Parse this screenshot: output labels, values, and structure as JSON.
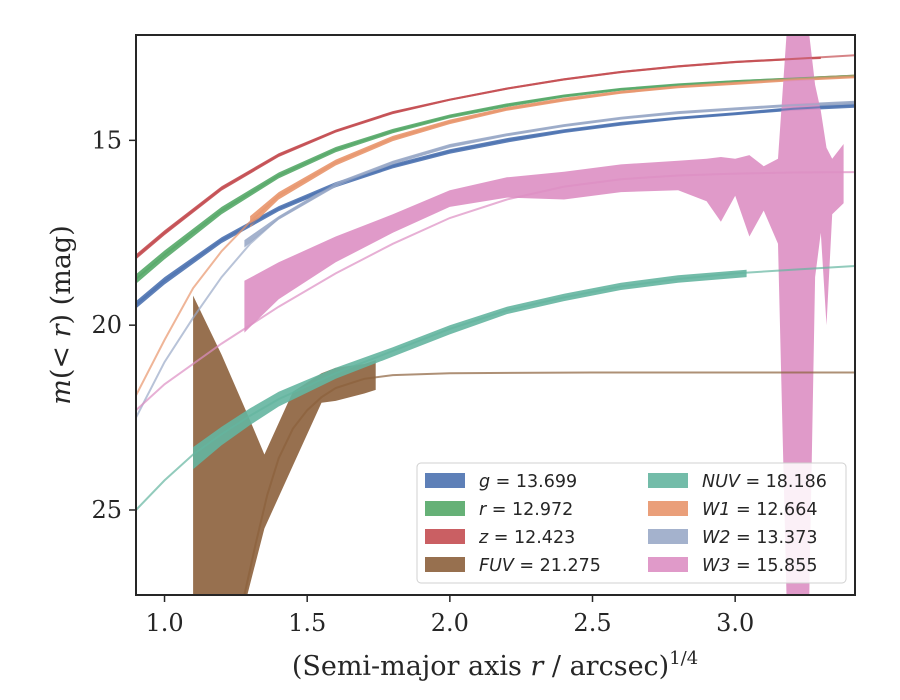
{
  "chart_data": {
    "type": "line",
    "xlabel": "(Semi-major axis r / arcsec)^{1/4}",
    "xlabel_parts": [
      "(Semi-major axis ",
      "r",
      " / arcsec)",
      "1/4"
    ],
    "ylabel": "m(< r) (mag)",
    "ylabel_parts": [
      "m",
      "(< ",
      "r",
      ") (mag)"
    ],
    "xlim": [
      0.9,
      3.42
    ],
    "ylim": [
      27.3,
      12.15
    ],
    "y_inverted": true,
    "xticks": [
      "1.0",
      "1.5",
      "2.0",
      "2.5",
      "3.0"
    ],
    "xtick_values": [
      1.0,
      1.5,
      2.0,
      2.5,
      3.0
    ],
    "yticks": [
      "15",
      "20",
      "25"
    ],
    "ytick_values": [
      15,
      20,
      25
    ],
    "grid": false,
    "legend_placement": "lower-right",
    "series": [
      {
        "name": "g",
        "label_var": "g",
        "label_value": "= 13.699",
        "color": "#4c72b0",
        "model_x": [
          0.9,
          1.0,
          1.2,
          1.4,
          1.6,
          1.8,
          2.0,
          2.2,
          2.4,
          2.6,
          2.8,
          3.0,
          3.2,
          3.42
        ],
        "model_y": [
          19.45,
          18.8,
          17.7,
          16.85,
          16.2,
          15.7,
          15.3,
          15.0,
          14.75,
          14.55,
          14.4,
          14.28,
          14.15,
          14.05
        ],
        "band_x": [
          0.9,
          1.0,
          1.2,
          1.4,
          1.6,
          1.8,
          2.0,
          2.2,
          2.4,
          2.6,
          2.8,
          3.0,
          3.2,
          3.42
        ],
        "band_lo": [
          19.35,
          18.7,
          17.62,
          16.78,
          16.13,
          15.64,
          15.24,
          14.94,
          14.7,
          14.5,
          14.36,
          14.24,
          14.1,
          13.97
        ],
        "band_hi": [
          19.55,
          18.9,
          17.78,
          16.92,
          16.27,
          15.76,
          15.36,
          15.06,
          14.8,
          14.6,
          14.44,
          14.32,
          14.2,
          14.12
        ]
      },
      {
        "name": "r",
        "label_var": "r",
        "label_value": "= 12.972",
        "color": "#55a868",
        "model_x": [
          0.9,
          1.0,
          1.2,
          1.4,
          1.6,
          1.8,
          2.0,
          2.2,
          2.4,
          2.6,
          2.8,
          3.0,
          3.2,
          3.42
        ],
        "model_y": [
          18.75,
          18.1,
          16.9,
          15.95,
          15.25,
          14.75,
          14.35,
          14.05,
          13.8,
          13.62,
          13.5,
          13.4,
          13.33,
          13.25
        ],
        "band_x": [
          0.9,
          1.0,
          1.2,
          1.4,
          1.6,
          1.8,
          2.0,
          2.2,
          2.4,
          2.6,
          2.8,
          3.0,
          3.2,
          3.42
        ],
        "band_lo": [
          18.62,
          17.98,
          16.8,
          15.87,
          15.18,
          14.69,
          14.3,
          14.0,
          13.76,
          13.58,
          13.46,
          13.37,
          13.3,
          13.22
        ],
        "band_hi": [
          18.88,
          18.22,
          17.0,
          16.03,
          15.32,
          14.81,
          14.4,
          14.1,
          13.84,
          13.66,
          13.54,
          13.43,
          13.36,
          13.28
        ]
      },
      {
        "name": "z",
        "label_var": "z",
        "label_value": "= 12.423",
        "color": "#c44e52",
        "model_x": [
          0.9,
          1.0,
          1.2,
          1.4,
          1.6,
          1.8,
          2.0,
          2.2,
          2.4,
          2.6,
          2.8,
          3.0,
          3.2,
          3.42
        ],
        "model_y": [
          18.15,
          17.5,
          16.3,
          15.4,
          14.75,
          14.25,
          13.9,
          13.6,
          13.35,
          13.15,
          13.0,
          12.88,
          12.8,
          12.7
        ],
        "band_x": [
          0.9,
          1.0,
          1.2,
          1.4,
          1.6,
          1.8,
          2.0,
          2.2,
          2.4,
          2.6,
          2.8,
          3.0,
          3.2,
          3.3
        ],
        "band_lo": [
          18.08,
          17.43,
          16.24,
          15.35,
          14.71,
          14.21,
          13.87,
          13.57,
          13.32,
          13.12,
          12.97,
          12.85,
          12.77,
          12.74
        ],
        "band_hi": [
          18.22,
          17.57,
          16.36,
          15.45,
          14.79,
          14.29,
          13.93,
          13.63,
          13.38,
          13.18,
          13.03,
          12.91,
          12.83,
          12.8
        ]
      },
      {
        "name": "FUV",
        "label_var": "FUV",
        "label_value": "= 21.275",
        "color": "#8c613c",
        "model_x": [
          1.28,
          1.32,
          1.36,
          1.4,
          1.45,
          1.5,
          1.55,
          1.6,
          1.7,
          1.8,
          2.0,
          2.5,
          3.0,
          3.42
        ],
        "model_y": [
          27.3,
          25.9,
          24.6,
          23.6,
          22.8,
          22.3,
          21.95,
          21.7,
          21.45,
          21.35,
          21.3,
          21.28,
          21.28,
          21.28
        ],
        "band_x": [
          1.1,
          1.2,
          1.29,
          1.35,
          1.45,
          1.55,
          1.6,
          1.7,
          1.74
        ],
        "band_lo": [
          19.2,
          20.8,
          22.4,
          23.5,
          21.8,
          21.3,
          21.15,
          21.05,
          20.95
        ],
        "band_hi": [
          27.3,
          27.3,
          27.3,
          25.5,
          23.8,
          22.1,
          22.05,
          21.85,
          21.75
        ]
      },
      {
        "name": "NUV",
        "label_var": "NUV",
        "label_value": "= 18.186",
        "color": "#64b5a0",
        "model_x": [
          0.9,
          1.0,
          1.1,
          1.2,
          1.3,
          1.4,
          1.6,
          1.8,
          2.0,
          2.2,
          2.4,
          2.6,
          2.8,
          3.0,
          3.2,
          3.42
        ],
        "model_y": [
          25.0,
          24.2,
          23.5,
          22.95,
          22.45,
          22.0,
          21.3,
          20.7,
          20.1,
          19.6,
          19.25,
          18.95,
          18.75,
          18.6,
          18.5,
          18.4
        ],
        "band_x": [
          1.1,
          1.2,
          1.3,
          1.4,
          1.6,
          1.8,
          2.0,
          2.2,
          2.4,
          2.6,
          2.8,
          3.04
        ],
        "band_lo": [
          23.3,
          22.75,
          22.25,
          21.8,
          21.15,
          20.6,
          20.0,
          19.5,
          19.15,
          18.85,
          18.65,
          18.5
        ],
        "band_hi": [
          23.9,
          23.25,
          22.7,
          22.2,
          21.45,
          20.85,
          20.25,
          19.7,
          19.35,
          19.05,
          18.85,
          18.7
        ]
      },
      {
        "name": "W1",
        "label_var": "W1",
        "label_value": "= 12.664",
        "color": "#e8956c",
        "model_x": [
          0.9,
          1.0,
          1.1,
          1.2,
          1.3,
          1.4,
          1.6,
          1.8,
          2.0,
          2.2,
          2.4,
          2.6,
          2.8,
          3.0,
          3.2,
          3.42
        ],
        "model_y": [
          21.9,
          20.4,
          19.0,
          18.0,
          17.2,
          16.5,
          15.6,
          14.95,
          14.5,
          14.15,
          13.9,
          13.7,
          13.55,
          13.45,
          13.35,
          13.27
        ],
        "band_x": [
          1.3,
          1.4,
          1.6,
          1.8,
          2.0,
          2.2,
          2.4,
          2.6,
          2.8,
          3.0,
          3.2,
          3.42
        ],
        "band_lo": [
          17.05,
          16.4,
          15.52,
          14.88,
          14.44,
          14.1,
          13.85,
          13.66,
          13.51,
          13.4,
          13.3,
          13.22
        ],
        "band_hi": [
          17.35,
          16.6,
          15.68,
          15.02,
          14.56,
          14.2,
          13.95,
          13.74,
          13.59,
          13.5,
          13.4,
          13.32
        ]
      },
      {
        "name": "W2",
        "label_var": "W2",
        "label_value": "= 13.373",
        "color": "#9aaac8",
        "model_x": [
          0.9,
          1.0,
          1.1,
          1.2,
          1.3,
          1.4,
          1.6,
          1.8,
          2.0,
          2.2,
          2.4,
          2.6,
          2.8,
          3.0,
          3.2,
          3.42
        ],
        "model_y": [
          22.5,
          21.0,
          19.8,
          18.7,
          17.8,
          17.1,
          16.2,
          15.6,
          15.15,
          14.85,
          14.6,
          14.4,
          14.25,
          14.15,
          14.05,
          13.98
        ],
        "band_x": [
          1.28,
          1.4,
          1.6,
          1.8,
          2.0,
          2.2,
          2.4,
          2.6,
          2.8,
          3.0,
          3.2,
          3.42
        ],
        "band_lo": [
          17.7,
          17.05,
          16.14,
          15.55,
          15.1,
          14.81,
          14.56,
          14.36,
          14.21,
          14.11,
          14.01,
          13.93
        ],
        "band_hi": [
          17.9,
          17.15,
          16.26,
          15.65,
          15.2,
          14.89,
          14.64,
          14.44,
          14.29,
          14.19,
          14.09,
          14.03
        ]
      },
      {
        "name": "W3",
        "label_var": "W3",
        "label_value": "= 15.855",
        "color": "#dd8fc3",
        "model_x": [
          0.9,
          1.0,
          1.2,
          1.4,
          1.6,
          1.8,
          2.0,
          2.2,
          2.4,
          2.6,
          2.8,
          3.0,
          3.2,
          3.42
        ],
        "model_y": [
          22.3,
          21.6,
          20.5,
          19.5,
          18.6,
          17.8,
          17.1,
          16.6,
          16.25,
          16.05,
          15.95,
          15.9,
          15.87,
          15.86
        ],
        "band_x": [
          1.28,
          1.4,
          1.6,
          1.8,
          2.0,
          2.2,
          2.4,
          2.6,
          2.8,
          2.9,
          2.95,
          3.0,
          3.05,
          3.1,
          3.15,
          3.18,
          3.2,
          3.24,
          3.26,
          3.28,
          3.3,
          3.32,
          3.34,
          3.38
        ],
        "band_lo": [
          18.8,
          18.3,
          17.6,
          17.0,
          16.35,
          16.0,
          15.85,
          15.65,
          15.55,
          15.5,
          15.45,
          15.5,
          15.4,
          15.7,
          15.5,
          12.15,
          12.15,
          12.15,
          12.15,
          13.5,
          14.2,
          15.2,
          15.5,
          15.1
        ],
        "band_hi": [
          20.2,
          19.3,
          18.3,
          17.5,
          16.8,
          16.55,
          16.6,
          16.4,
          16.35,
          16.65,
          17.2,
          16.5,
          17.6,
          16.9,
          17.8,
          27.3,
          27.3,
          27.3,
          27.3,
          18.7,
          17.5,
          20.0,
          17.0,
          16.7
        ]
      }
    ]
  }
}
